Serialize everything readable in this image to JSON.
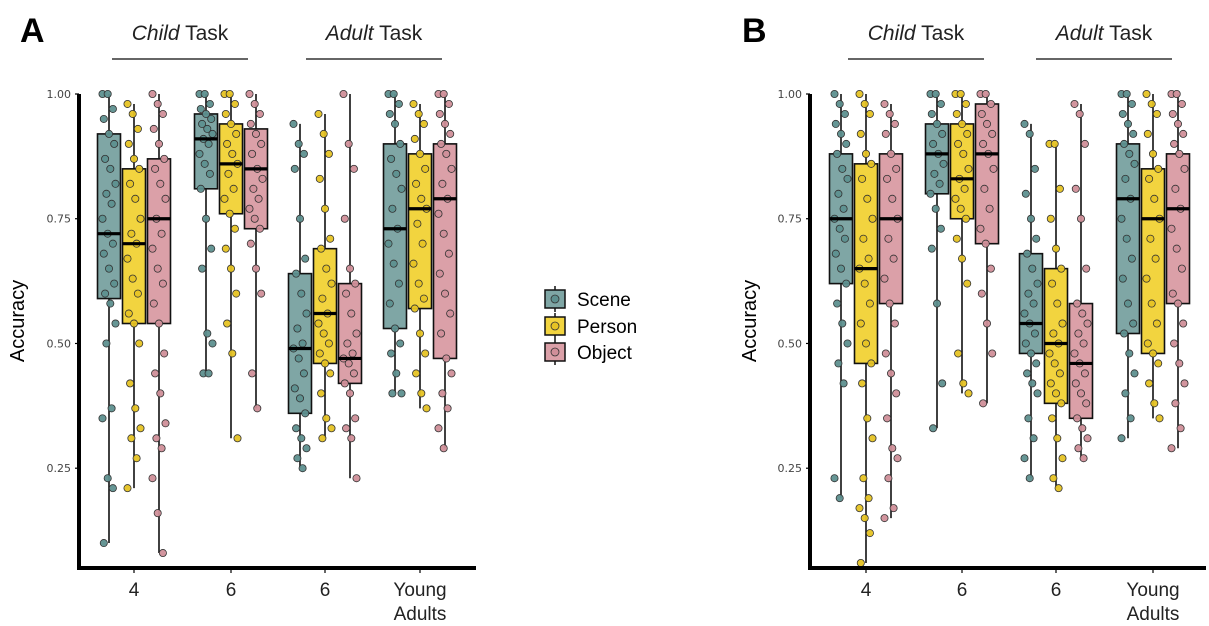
{
  "panels": [
    {
      "letter": "A",
      "task_labels": [
        {
          "emph": "Child",
          "rest": " Task"
        },
        {
          "emph": "Adult",
          "rest": " Task"
        }
      ]
    },
    {
      "letter": "B",
      "task_labels": [
        {
          "emph": "Child",
          "rest": " Task"
        },
        {
          "emph": "Adult",
          "rest": " Task"
        }
      ]
    }
  ],
  "legend": {
    "entries": [
      "Scene",
      "Person",
      "Object"
    ],
    "placement": "between-panels"
  },
  "colors": {
    "Scene": "#7fa6a5",
    "Person": "#f2d43f",
    "Object": "#dba0a8",
    "Scene_point": "#5e908f",
    "Person_point": "#e6c324",
    "Object_point": "#d08f99"
  },
  "chart_data": [
    {
      "type": "box",
      "panel": "A",
      "ylabel": "Accuracy",
      "ylim": [
        0.05,
        1.0
      ],
      "yticks": [
        0.25,
        0.5,
        0.75,
        1.0
      ],
      "ytick_labels": [
        "0.25",
        "0.50",
        "0.75",
        "1.00"
      ],
      "categories": [
        [
          "4"
        ],
        [
          "6"
        ],
        [
          "6"
        ],
        [
          "Young",
          "Adults"
        ]
      ],
      "series": [
        {
          "name": "Scene",
          "boxes": [
            {
              "min": 0.1,
              "q1": 0.59,
              "median": 0.72,
              "q3": 0.92,
              "max": 1.0,
              "points": [
                1.0,
                1.0,
                0.97,
                0.95,
                0.92,
                0.9,
                0.87,
                0.85,
                0.82,
                0.8,
                0.78,
                0.75,
                0.72,
                0.7,
                0.68,
                0.65,
                0.62,
                0.6,
                0.58,
                0.54,
                0.5,
                0.37,
                0.35,
                0.23,
                0.21,
                0.1
              ]
            },
            {
              "min": 0.44,
              "q1": 0.81,
              "median": 0.91,
              "q3": 0.96,
              "max": 1.0,
              "points": [
                1.0,
                1.0,
                0.98,
                0.97,
                0.96,
                0.95,
                0.94,
                0.93,
                0.92,
                0.91,
                0.9,
                0.88,
                0.86,
                0.84,
                0.81,
                0.75,
                0.69,
                0.65,
                0.52,
                0.5,
                0.44,
                0.44
              ]
            },
            {
              "min": 0.25,
              "q1": 0.36,
              "median": 0.49,
              "q3": 0.64,
              "max": 0.94,
              "points": [
                0.94,
                0.9,
                0.88,
                0.85,
                0.75,
                0.67,
                0.64,
                0.6,
                0.56,
                0.53,
                0.5,
                0.49,
                0.47,
                0.44,
                0.41,
                0.39,
                0.36,
                0.33,
                0.31,
                0.29,
                0.27,
                0.25
              ]
            },
            {
              "min": 0.4,
              "q1": 0.53,
              "median": 0.73,
              "q3": 0.9,
              "max": 1.0,
              "points": [
                1.0,
                1.0,
                0.98,
                0.96,
                0.94,
                0.9,
                0.87,
                0.84,
                0.81,
                0.77,
                0.73,
                0.7,
                0.66,
                0.62,
                0.58,
                0.53,
                0.5,
                0.48,
                0.44,
                0.4,
                0.4
              ]
            }
          ]
        },
        {
          "name": "Person",
          "boxes": [
            {
              "min": 0.21,
              "q1": 0.54,
              "median": 0.7,
              "q3": 0.85,
              "max": 0.98,
              "points": [
                0.98,
                0.96,
                0.93,
                0.9,
                0.87,
                0.85,
                0.82,
                0.79,
                0.75,
                0.72,
                0.7,
                0.67,
                0.63,
                0.6,
                0.56,
                0.54,
                0.5,
                0.42,
                0.37,
                0.33,
                0.31,
                0.27,
                0.21
              ]
            },
            {
              "min": 0.31,
              "q1": 0.76,
              "median": 0.86,
              "q3": 0.94,
              "max": 1.0,
              "points": [
                1.0,
                1.0,
                0.98,
                0.96,
                0.94,
                0.92,
                0.9,
                0.88,
                0.86,
                0.84,
                0.81,
                0.79,
                0.76,
                0.73,
                0.69,
                0.65,
                0.6,
                0.54,
                0.48,
                0.31
              ]
            },
            {
              "min": 0.31,
              "q1": 0.46,
              "median": 0.56,
              "q3": 0.69,
              "max": 0.96,
              "points": [
                0.96,
                0.92,
                0.88,
                0.83,
                0.77,
                0.71,
                0.69,
                0.65,
                0.62,
                0.59,
                0.56,
                0.54,
                0.52,
                0.5,
                0.48,
                0.46,
                0.44,
                0.4,
                0.35,
                0.33,
                0.31
              ]
            },
            {
              "min": 0.37,
              "q1": 0.57,
              "median": 0.77,
              "q3": 0.88,
              "max": 0.98,
              "points": [
                0.98,
                0.96,
                0.94,
                0.91,
                0.88,
                0.85,
                0.82,
                0.79,
                0.77,
                0.74,
                0.7,
                0.66,
                0.62,
                0.59,
                0.57,
                0.52,
                0.48,
                0.44,
                0.4,
                0.37
              ]
            }
          ]
        },
        {
          "name": "Object",
          "boxes": [
            {
              "min": 0.08,
              "q1": 0.54,
              "median": 0.75,
              "q3": 0.87,
              "max": 1.0,
              "points": [
                1.0,
                0.98,
                0.96,
                0.93,
                0.9,
                0.87,
                0.85,
                0.82,
                0.79,
                0.75,
                0.72,
                0.69,
                0.65,
                0.62,
                0.58,
                0.54,
                0.48,
                0.44,
                0.4,
                0.34,
                0.31,
                0.29,
                0.23,
                0.16,
                0.08
              ]
            },
            {
              "min": 0.37,
              "q1": 0.73,
              "median": 0.85,
              "q3": 0.93,
              "max": 1.0,
              "points": [
                1.0,
                0.98,
                0.96,
                0.94,
                0.92,
                0.9,
                0.88,
                0.85,
                0.83,
                0.81,
                0.79,
                0.77,
                0.75,
                0.73,
                0.7,
                0.65,
                0.6,
                0.44,
                0.37
              ]
            },
            {
              "min": 0.23,
              "q1": 0.42,
              "median": 0.47,
              "q3": 0.62,
              "max": 1.0,
              "points": [
                1.0,
                0.9,
                0.85,
                0.75,
                0.65,
                0.62,
                0.6,
                0.56,
                0.52,
                0.5,
                0.48,
                0.47,
                0.46,
                0.44,
                0.42,
                0.4,
                0.35,
                0.33,
                0.31,
                0.23
              ]
            },
            {
              "min": 0.29,
              "q1": 0.47,
              "median": 0.79,
              "q3": 0.9,
              "max": 1.0,
              "points": [
                1.0,
                1.0,
                0.98,
                0.96,
                0.94,
                0.92,
                0.9,
                0.88,
                0.85,
                0.82,
                0.79,
                0.76,
                0.72,
                0.68,
                0.64,
                0.6,
                0.56,
                0.52,
                0.47,
                0.44,
                0.4,
                0.37,
                0.33,
                0.29
              ]
            }
          ]
        }
      ]
    },
    {
      "type": "box",
      "panel": "B",
      "ylabel": "Accuracy",
      "ylim": [
        0.05,
        1.0
      ],
      "yticks": [
        0.25,
        0.5,
        0.75,
        1.0
      ],
      "ytick_labels": [
        "0.25",
        "0.50",
        "0.75",
        "1.00"
      ],
      "categories": [
        [
          "4"
        ],
        [
          "6"
        ],
        [
          "6"
        ],
        [
          "Young",
          "Adults"
        ]
      ],
      "series": [
        {
          "name": "Scene",
          "boxes": [
            {
              "min": 0.19,
              "q1": 0.62,
              "median": 0.75,
              "q3": 0.88,
              "max": 1.0,
              "points": [
                1.0,
                0.98,
                0.96,
                0.94,
                0.92,
                0.9,
                0.88,
                0.85,
                0.83,
                0.8,
                0.77,
                0.75,
                0.73,
                0.71,
                0.68,
                0.65,
                0.62,
                0.58,
                0.54,
                0.5,
                0.46,
                0.42,
                0.23,
                0.19
              ]
            },
            {
              "min": 0.33,
              "q1": 0.8,
              "median": 0.88,
              "q3": 0.94,
              "max": 1.0,
              "points": [
                1.0,
                1.0,
                0.98,
                0.96,
                0.94,
                0.92,
                0.9,
                0.88,
                0.86,
                0.84,
                0.82,
                0.8,
                0.77,
                0.73,
                0.69,
                0.58,
                0.42,
                0.33
              ]
            },
            {
              "min": 0.23,
              "q1": 0.48,
              "median": 0.54,
              "q3": 0.68,
              "max": 0.94,
              "points": [
                0.94,
                0.92,
                0.85,
                0.8,
                0.75,
                0.71,
                0.68,
                0.65,
                0.62,
                0.6,
                0.58,
                0.56,
                0.54,
                0.52,
                0.5,
                0.48,
                0.46,
                0.44,
                0.42,
                0.4,
                0.35,
                0.31,
                0.27,
                0.23
              ]
            },
            {
              "min": 0.31,
              "q1": 0.52,
              "median": 0.79,
              "q3": 0.9,
              "max": 1.0,
              "points": [
                1.0,
                1.0,
                0.98,
                0.96,
                0.94,
                0.92,
                0.9,
                0.88,
                0.86,
                0.83,
                0.79,
                0.75,
                0.71,
                0.67,
                0.63,
                0.58,
                0.54,
                0.52,
                0.48,
                0.44,
                0.4,
                0.35,
                0.31
              ]
            }
          ]
        },
        {
          "name": "Person",
          "boxes": [
            {
              "min": 0.06,
              "q1": 0.46,
              "median": 0.65,
              "q3": 0.86,
              "max": 1.0,
              "points": [
                1.0,
                0.98,
                0.96,
                0.92,
                0.88,
                0.86,
                0.83,
                0.79,
                0.75,
                0.71,
                0.67,
                0.65,
                0.62,
                0.58,
                0.54,
                0.5,
                0.46,
                0.42,
                0.35,
                0.31,
                0.23,
                0.19,
                0.17,
                0.15,
                0.12,
                0.06
              ]
            },
            {
              "min": 0.4,
              "q1": 0.75,
              "median": 0.83,
              "q3": 0.94,
              "max": 1.0,
              "points": [
                1.0,
                1.0,
                0.98,
                0.96,
                0.94,
                0.92,
                0.9,
                0.88,
                0.85,
                0.83,
                0.81,
                0.79,
                0.77,
                0.75,
                0.71,
                0.67,
                0.62,
                0.48,
                0.42,
                0.4
              ]
            },
            {
              "min": 0.21,
              "q1": 0.38,
              "median": 0.5,
              "q3": 0.65,
              "max": 0.9,
              "points": [
                0.9,
                0.9,
                0.81,
                0.75,
                0.69,
                0.65,
                0.62,
                0.58,
                0.54,
                0.52,
                0.5,
                0.48,
                0.46,
                0.44,
                0.42,
                0.4,
                0.38,
                0.35,
                0.31,
                0.27,
                0.23,
                0.21
              ]
            },
            {
              "min": 0.35,
              "q1": 0.48,
              "median": 0.75,
              "q3": 0.85,
              "max": 1.0,
              "points": [
                1.0,
                0.98,
                0.96,
                0.92,
                0.88,
                0.85,
                0.83,
                0.79,
                0.75,
                0.71,
                0.67,
                0.63,
                0.58,
                0.54,
                0.5,
                0.48,
                0.46,
                0.42,
                0.38,
                0.35
              ]
            }
          ]
        },
        {
          "name": "Object",
          "boxes": [
            {
              "min": 0.15,
              "q1": 0.58,
              "median": 0.75,
              "q3": 0.88,
              "max": 0.98,
              "points": [
                0.98,
                0.96,
                0.94,
                0.92,
                0.88,
                0.85,
                0.83,
                0.79,
                0.75,
                0.71,
                0.67,
                0.63,
                0.58,
                0.54,
                0.48,
                0.44,
                0.4,
                0.35,
                0.29,
                0.27,
                0.23,
                0.17,
                0.15
              ]
            },
            {
              "min": 0.38,
              "q1": 0.7,
              "median": 0.88,
              "q3": 0.98,
              "max": 1.0,
              "points": [
                1.0,
                1.0,
                0.98,
                0.96,
                0.94,
                0.92,
                0.9,
                0.88,
                0.85,
                0.81,
                0.77,
                0.73,
                0.7,
                0.65,
                0.6,
                0.54,
                0.48,
                0.38
              ]
            },
            {
              "min": 0.27,
              "q1": 0.35,
              "median": 0.46,
              "q3": 0.58,
              "max": 0.98,
              "points": [
                0.98,
                0.96,
                0.9,
                0.81,
                0.75,
                0.65,
                0.58,
                0.56,
                0.54,
                0.52,
                0.5,
                0.48,
                0.46,
                0.44,
                0.42,
                0.4,
                0.38,
                0.35,
                0.33,
                0.31,
                0.29,
                0.27
              ]
            },
            {
              "min": 0.29,
              "q1": 0.58,
              "median": 0.77,
              "q3": 0.88,
              "max": 1.0,
              "points": [
                1.0,
                1.0,
                0.98,
                0.96,
                0.94,
                0.92,
                0.9,
                0.88,
                0.85,
                0.81,
                0.77,
                0.73,
                0.69,
                0.65,
                0.6,
                0.58,
                0.54,
                0.5,
                0.46,
                0.42,
                0.38,
                0.33,
                0.29
              ]
            }
          ]
        }
      ]
    }
  ]
}
